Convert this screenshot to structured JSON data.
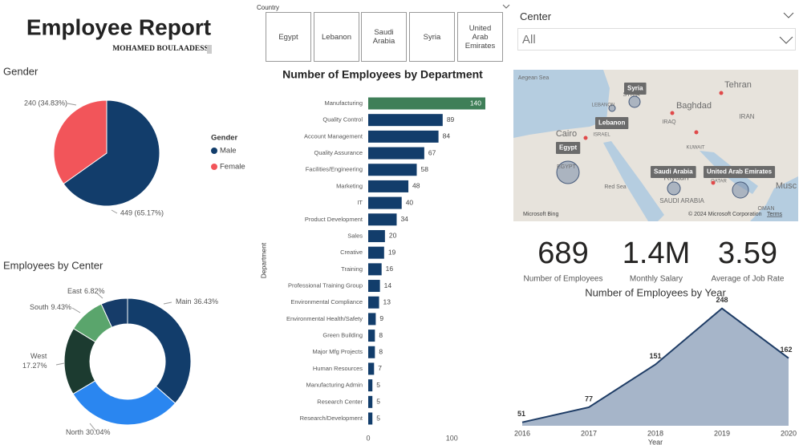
{
  "header": {
    "title": "Employee Report",
    "author": "MOHAMED BOULAADESS"
  },
  "country_slicer": {
    "label": "Country",
    "options": [
      "Egypt",
      "Lebanon",
      "Saudi Arabia",
      "Syria",
      "United Arab Emirates"
    ]
  },
  "center_slicer": {
    "label": "Center",
    "value": "All"
  },
  "map": {
    "bubbles": [
      "Syria",
      "Lebanon",
      "Egypt",
      "Saudi Arabia",
      "United Arab Emirates"
    ],
    "places": [
      "Aegean Sea",
      "Tehran",
      "Baghdad",
      "Cairo",
      "IRAN",
      "IRAQ",
      "SYRIA",
      "LEBANON",
      "ISRAEL",
      "KUWAIT",
      "EGYPT",
      "Red Sea",
      "QATAR",
      "Riyadh",
      "SAUDI ARABIA",
      "OMAN",
      "Musc"
    ],
    "attribution": "Microsoft Bing",
    "copyright": "© 2024 Microsoft Corporation",
    "terms": "Terms"
  },
  "kpis": [
    {
      "value": "689",
      "label": "Number of Employees"
    },
    {
      "value": "1.4M",
      "label": "Monthly Salary"
    },
    {
      "value": "3.59",
      "label": "Average of Job Rate"
    }
  ],
  "chart_data": [
    {
      "type": "pie",
      "title": "Gender",
      "legend_title": "Gender",
      "categories": [
        "Male",
        "Female"
      ],
      "values": [
        449,
        240
      ],
      "value_labels": [
        "449 (65.17%)",
        "240 (34.83%)"
      ],
      "colors": [
        "#123d6b",
        "#f2555a"
      ],
      "legend": "right"
    },
    {
      "type": "donut",
      "title": "Employees by Center",
      "categories": [
        "Main",
        "North",
        "West",
        "South",
        "East"
      ],
      "values": [
        36.43,
        30.04,
        17.27,
        9.43,
        6.82
      ],
      "value_labels": [
        "36.43%",
        "30.04%",
        "17.27%",
        "9.43%",
        "6.82%"
      ],
      "colors": [
        "#123d6b",
        "#2a86f0",
        "#1c3b30",
        "#5aa56c",
        "#163c69"
      ]
    },
    {
      "type": "hbar",
      "title": "Number of Employees by Department",
      "ylabel": "Department",
      "categories": [
        "Manufacturing",
        "Quality Control",
        "Account Management",
        "Quality Assurance",
        "Facilities/Engineering",
        "Marketing",
        "IT",
        "Product Development",
        "Sales",
        "Creative",
        "Training",
        "Professional Training Group",
        "Environmental Compliance",
        "Environmental Health/Safety",
        "Green Building",
        "Major Mfg Projects",
        "Human Resources",
        "Manufacturing Admin",
        "Research Center",
        "Research/Development"
      ],
      "values": [
        140,
        89,
        84,
        67,
        58,
        48,
        40,
        34,
        20,
        19,
        16,
        14,
        13,
        9,
        8,
        8,
        7,
        5,
        5,
        5
      ],
      "colors": [
        "#3f7f58",
        "#123d6b",
        "#123d6b",
        "#123d6b",
        "#123d6b",
        "#123d6b",
        "#123d6b",
        "#123d6b",
        "#123d6b",
        "#123d6b",
        "#123d6b",
        "#123d6b",
        "#123d6b",
        "#123d6b",
        "#123d6b",
        "#123d6b",
        "#123d6b",
        "#123d6b",
        "#123d6b",
        "#123d6b"
      ],
      "xlim": [
        0,
        140
      ],
      "xticks": [
        0,
        100
      ]
    },
    {
      "type": "area",
      "title": "Number of Employees by Year",
      "xlabel": "Year",
      "x": [
        2016,
        2017,
        2018,
        2019,
        2020
      ],
      "values": [
        51,
        77,
        151,
        248,
        162
      ],
      "xlim": [
        2016,
        2020
      ],
      "xticks": [
        2016,
        2017,
        2018,
        2019,
        2020
      ],
      "ylim": [
        45,
        260
      ],
      "color": "#1f3d66",
      "fill": "#a6b5c9"
    }
  ]
}
